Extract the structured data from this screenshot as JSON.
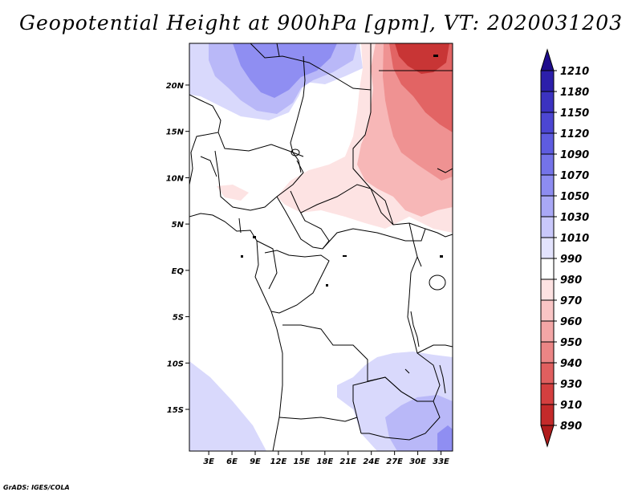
{
  "title": "Geopotential Height at 900hPa [gpm], VT: 2020031203",
  "credit": "GrADS: IGES/COLA",
  "map": {
    "lat_labels": [
      "20N",
      "15N",
      "10N",
      "5N",
      "EQ",
      "5S",
      "10S",
      "15S"
    ],
    "lat_values": [
      20,
      15,
      10,
      5,
      0,
      -5,
      -10,
      -15
    ],
    "lon_labels": [
      "3E",
      "6E",
      "9E",
      "12E",
      "15E",
      "18E",
      "21E",
      "24E",
      "27E",
      "30E",
      "33E"
    ],
    "lon_values": [
      3,
      6,
      9,
      12,
      15,
      18,
      21,
      24,
      27,
      30,
      33
    ],
    "lon_range": [
      0.5,
      34.5
    ],
    "lat_range": [
      -19.5,
      24.5
    ]
  },
  "colorbar": {
    "labels": [
      "1210",
      "1180",
      "1150",
      "1120",
      "1090",
      "1070",
      "1050",
      "1030",
      "1010",
      "990",
      "980",
      "970",
      "960",
      "950",
      "940",
      "930",
      "910",
      "890"
    ],
    "colors": [
      "#1e0c8c",
      "#2c1faa",
      "#3b32c0",
      "#4c46d2",
      "#5e5ce0",
      "#7473e9",
      "#8d8cf1",
      "#a9a8f6",
      "#c9c8fb",
      "#e3e3fd",
      "#ffffff",
      "#fde2e2",
      "#f9c5c5",
      "#f3a6a6",
      "#eb8585",
      "#e05f5f",
      "#d43f3f",
      "#c42a2a",
      "#b01c1c"
    ]
  },
  "colors": {
    "blue_medium": "#8f8ef2",
    "blue_light": "#b9b8f8",
    "blue_pale": "#d9d9fc",
    "red_pale": "#fde3e3",
    "red_light": "#f7b7b7",
    "red_medium": "#ef9292",
    "red_strong": "#e26464",
    "red_dark": "#c83535",
    "border": "#000000"
  }
}
